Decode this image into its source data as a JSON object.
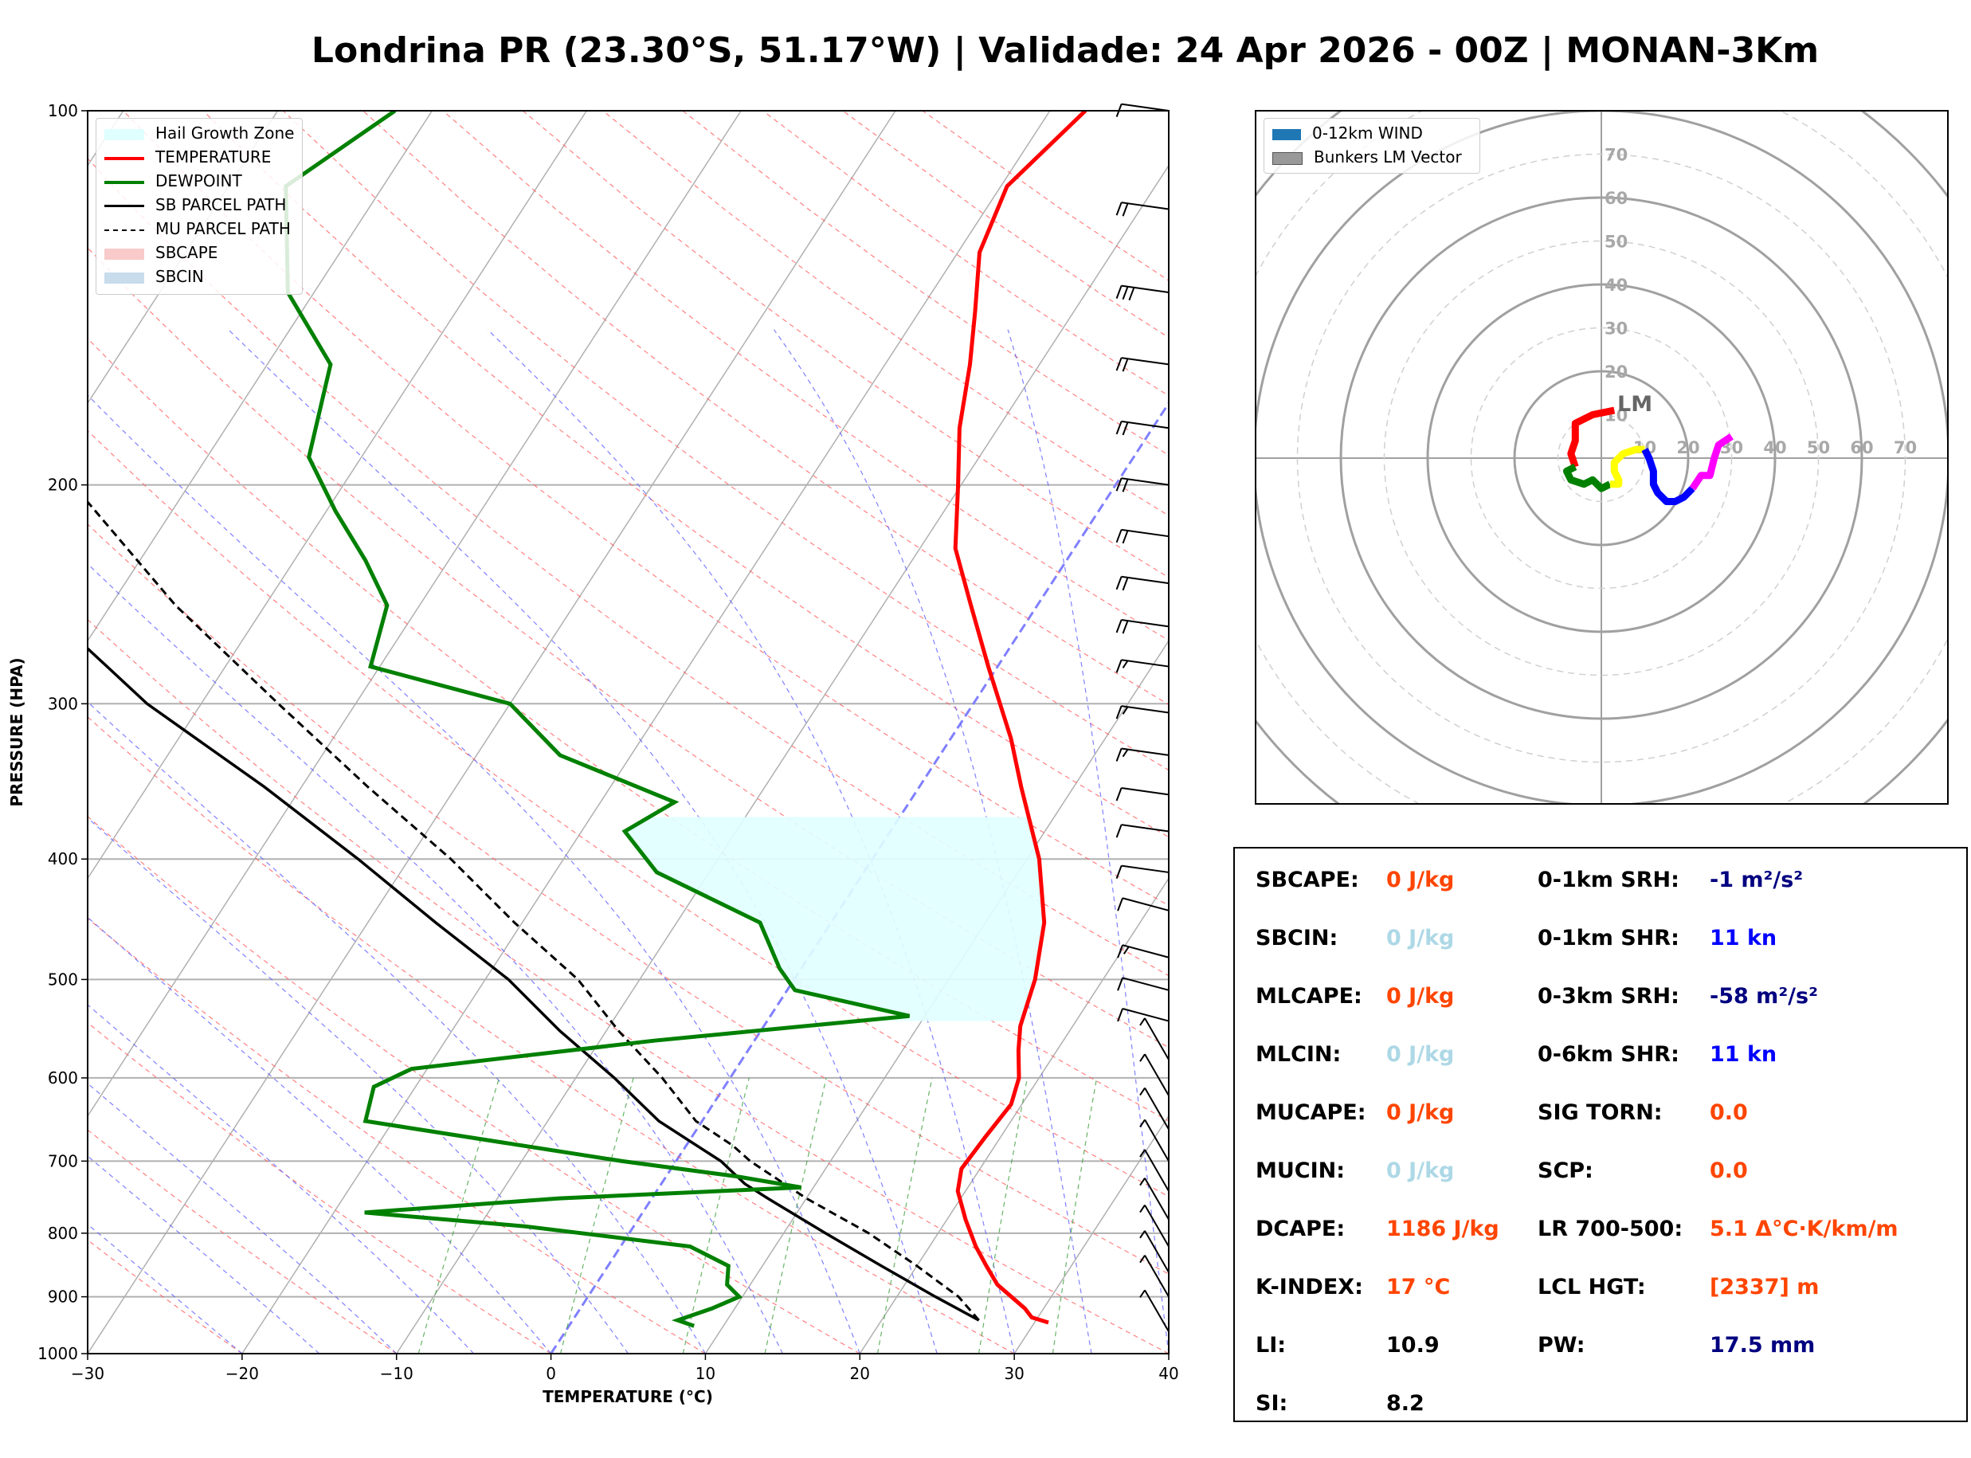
{
  "title": "Londrina PR (23.30°S, 51.17°W) | Validade: 24 Apr 2026 - 00Z | MONAN-3Km",
  "chart_data": [
    {
      "type": "line",
      "name": "skew-t",
      "xlabel": "TEMPERATURE (°C)",
      "ylabel": "PRESSURE (HPA)",
      "xlim": [
        -30,
        40
      ],
      "ylim": [
        1000,
        100
      ],
      "x_ticks": [
        "−30",
        "−20",
        "−10",
        "0",
        "10",
        "20",
        "30",
        "40"
      ],
      "y_ticks": [
        "100",
        "200",
        "300",
        "400",
        "500",
        "600",
        "700",
        "800",
        "900",
        "1000"
      ],
      "legend": [
        "Hail Growth Zone",
        "TEMPERATURE",
        "DEWPOINT",
        "SB PARCEL PATH",
        "MU PARCEL PATH",
        "SBCAPE",
        "SBCIN"
      ],
      "legend_position": "top-left",
      "temperature": [
        [
          944,
          30.9
        ],
        [
          935,
          29.6
        ],
        [
          920,
          28.8
        ],
        [
          880,
          26
        ],
        [
          850,
          24.5
        ],
        [
          820,
          23
        ],
        [
          780,
          21.2
        ],
        [
          740,
          19.5
        ],
        [
          710,
          18.8
        ],
        [
          670,
          19
        ],
        [
          630,
          19.3
        ],
        [
          600,
          18.7
        ],
        [
          570,
          17.5
        ],
        [
          545,
          16.6
        ],
        [
          500,
          15.6
        ],
        [
          450,
          13.8
        ],
        [
          400,
          10.8
        ],
        [
          350,
          6.6
        ],
        [
          320,
          3.9
        ],
        [
          280,
          -0.6
        ],
        [
          250,
          -4.3
        ],
        [
          225,
          -7.7
        ],
        [
          200,
          -10.2
        ],
        [
          180,
          -12.5
        ],
        [
          160,
          -14.5
        ],
        [
          145,
          -16.4
        ],
        [
          130,
          -18.6
        ],
        [
          115,
          -19.6
        ],
        [
          100,
          -17.7
        ]
      ],
      "dewpoint": [
        [
          950,
          8.1
        ],
        [
          940,
          6.8
        ],
        [
          920,
          8.5
        ],
        [
          900,
          9.8
        ],
        [
          880,
          8.5
        ],
        [
          850,
          7.8
        ],
        [
          820,
          4.5
        ],
        [
          790,
          -7
        ],
        [
          770,
          -18
        ],
        [
          750,
          -6
        ],
        [
          735,
          9.2
        ],
        [
          720,
          4.5
        ],
        [
          700,
          -3.5
        ],
        [
          650,
          -21.8
        ],
        [
          610,
          -22.7
        ],
        [
          590,
          -21
        ],
        [
          560,
          -6.5
        ],
        [
          535,
          9
        ],
        [
          510,
          0.5
        ],
        [
          490,
          -1.4
        ],
        [
          450,
          -4.6
        ],
        [
          410,
          -13.4
        ],
        [
          380,
          -17.2
        ],
        [
          360,
          -15.2
        ],
        [
          330,
          -24.6
        ],
        [
          300,
          -30
        ],
        [
          280,
          -40.6
        ],
        [
          250,
          -42.1
        ],
        [
          230,
          -45.4
        ],
        [
          210,
          -49.4
        ],
        [
          190,
          -53.4
        ],
        [
          160,
          -55.9
        ],
        [
          140,
          -61.7
        ],
        [
          115,
          -66.3
        ],
        [
          100,
          -62.4
        ]
      ],
      "sb_parcel": [
        [
          940,
          26.3
        ],
        [
          900,
          22.5
        ],
        [
          850,
          17.7
        ],
        [
          800,
          12.7
        ],
        [
          750,
          7.5
        ],
        [
          730,
          5.4
        ],
        [
          700,
          2.9
        ],
        [
          650,
          -2.8
        ],
        [
          600,
          -7.5
        ],
        [
          550,
          -13
        ],
        [
          500,
          -18.5
        ],
        [
          450,
          -25.6
        ],
        [
          400,
          -33.3
        ],
        [
          350,
          -42.4
        ],
        [
          300,
          -53.5
        ],
        [
          250,
          -64.5
        ],
        [
          200,
          -76.7
        ],
        [
          160,
          -87
        ],
        [
          130,
          -95
        ],
        [
          110,
          -101
        ],
        [
          100,
          -104
        ]
      ],
      "mu_parcel": [
        [
          940,
          26.3
        ],
        [
          900,
          24
        ],
        [
          850,
          20
        ],
        [
          800,
          15.5
        ],
        [
          750,
          10
        ],
        [
          700,
          4.8
        ],
        [
          680,
          3
        ],
        [
          650,
          -0.4
        ],
        [
          600,
          -4.4
        ],
        [
          550,
          -9.2
        ],
        [
          500,
          -14
        ],
        [
          450,
          -20.5
        ],
        [
          400,
          -27.3
        ],
        [
          350,
          -35.7
        ],
        [
          300,
          -45
        ],
        [
          250,
          -55.8
        ],
        [
          200,
          -67.5
        ],
        [
          160,
          -78.4
        ],
        [
          130,
          -87
        ],
        [
          110,
          -93
        ]
      ],
      "hail_growth_zone": {
        "top_hpa": 370,
        "bottom_hpa": 540
      },
      "wind_barbs_kn": [
        [
          960,
          5
        ],
        [
          900,
          5
        ],
        [
          860,
          5
        ],
        [
          820,
          5
        ],
        [
          780,
          5
        ],
        [
          740,
          5
        ],
        [
          700,
          5
        ],
        [
          660,
          5
        ],
        [
          620,
          5
        ],
        [
          580,
          5
        ],
        [
          540,
          10
        ],
        [
          510,
          10
        ],
        [
          480,
          15
        ],
        [
          440,
          10
        ],
        [
          410,
          10
        ],
        [
          380,
          10
        ],
        [
          355,
          10
        ],
        [
          330,
          15
        ],
        [
          305,
          15
        ],
        [
          280,
          15
        ],
        [
          260,
          20
        ],
        [
          240,
          20
        ],
        [
          220,
          20
        ],
        [
          200,
          20
        ],
        [
          180,
          20
        ],
        [
          160,
          20
        ],
        [
          140,
          30
        ],
        [
          120,
          20
        ],
        [
          100,
          10
        ]
      ]
    },
    {
      "type": "line",
      "name": "hodograph",
      "legend": [
        "0-12km WIND",
        "Bunkers LM Vector"
      ],
      "legend_position": "top-left",
      "ring_labels": [
        "10",
        "20",
        "30",
        "40",
        "50",
        "60",
        "70"
      ],
      "storm_motion_label": "LM",
      "segments": [
        {
          "color": "#ff0000",
          "points": [
            [
              3,
              11
            ],
            [
              -2,
              10
            ],
            [
              -6,
              8
            ],
            [
              -6,
              4
            ],
            [
              -7,
              1
            ],
            [
              -6,
              -2
            ]
          ]
        },
        {
          "color": "#008000",
          "points": [
            [
              -6,
              -2
            ],
            [
              -8,
              -3
            ],
            [
              -7,
              -5
            ],
            [
              -4,
              -6
            ],
            [
              -2,
              -5
            ],
            [
              0,
              -7
            ],
            [
              2,
              -6
            ]
          ]
        },
        {
          "color": "#ffff00",
          "points": [
            [
              2,
              -6
            ],
            [
              4,
              -6
            ],
            [
              4,
              -5
            ],
            [
              3,
              -3
            ],
            [
              3,
              -1
            ],
            [
              5,
              1
            ],
            [
              8,
              2
            ],
            [
              10,
              2
            ]
          ]
        },
        {
          "color": "#0000ff",
          "points": [
            [
              10,
              2
            ],
            [
              11,
              0
            ],
            [
              12,
              -3
            ],
            [
              12,
              -6
            ],
            [
              13,
              -8
            ],
            [
              15,
              -10
            ],
            [
              17,
              -10
            ],
            [
              19,
              -9
            ],
            [
              21,
              -7
            ]
          ]
        },
        {
          "color": "#ff00ff",
          "points": [
            [
              21,
              -7
            ],
            [
              23,
              -4
            ],
            [
              25,
              -4
            ],
            [
              26,
              0
            ],
            [
              27,
              3
            ],
            [
              30,
              5
            ]
          ]
        }
      ]
    }
  ],
  "stats": {
    "left": [
      {
        "label": "SBCAPE:",
        "value": "0 J/kg",
        "color": "#ff4500"
      },
      {
        "label": "SBCIN:",
        "value": "0 J/kg",
        "color": "#add8e6"
      },
      {
        "label": "MLCAPE:",
        "value": "0 J/kg",
        "color": "#ff4500"
      },
      {
        "label": "MLCIN:",
        "value": "0 J/kg",
        "color": "#add8e6"
      },
      {
        "label": "MUCAPE:",
        "value": "0 J/kg",
        "color": "#ff4500"
      },
      {
        "label": "MUCIN:",
        "value": "0 J/kg",
        "color": "#add8e6"
      },
      {
        "label": "DCAPE:",
        "value": "1186 J/kg",
        "color": "#ff4500"
      },
      {
        "label": "K-INDEX:",
        "value": "17 °C",
        "color": "#ff4500"
      },
      {
        "label": "LI:",
        "value": "10.9",
        "color": "#000000"
      },
      {
        "label": "SI:",
        "value": "8.2",
        "color": "#000000"
      }
    ],
    "right": [
      {
        "label": "0-1km SRH:",
        "value": "-1 m²/s²",
        "color": "#000080"
      },
      {
        "label": "0-1km SHR:",
        "value": "11 kn",
        "color": "#0000ff"
      },
      {
        "label": "0-3km SRH:",
        "value": "-58 m²/s²",
        "color": "#000080"
      },
      {
        "label": "0-6km SHR:",
        "value": "11 kn",
        "color": "#0000ff"
      },
      {
        "label": "SIG TORN:",
        "value": "0.0",
        "color": "#ff4500"
      },
      {
        "label": "SCP:",
        "value": "0.0",
        "color": "#ff4500"
      },
      {
        "label": "LR 700-500:",
        "value": "5.1 Δ°C·K/km/m",
        "color": "#ff4500"
      },
      {
        "label": "LCL HGT:",
        "value": "[2337] m",
        "color": "#ff4500"
      },
      {
        "label": "PW:",
        "value": "17.5 mm",
        "color": "#000080"
      }
    ]
  }
}
